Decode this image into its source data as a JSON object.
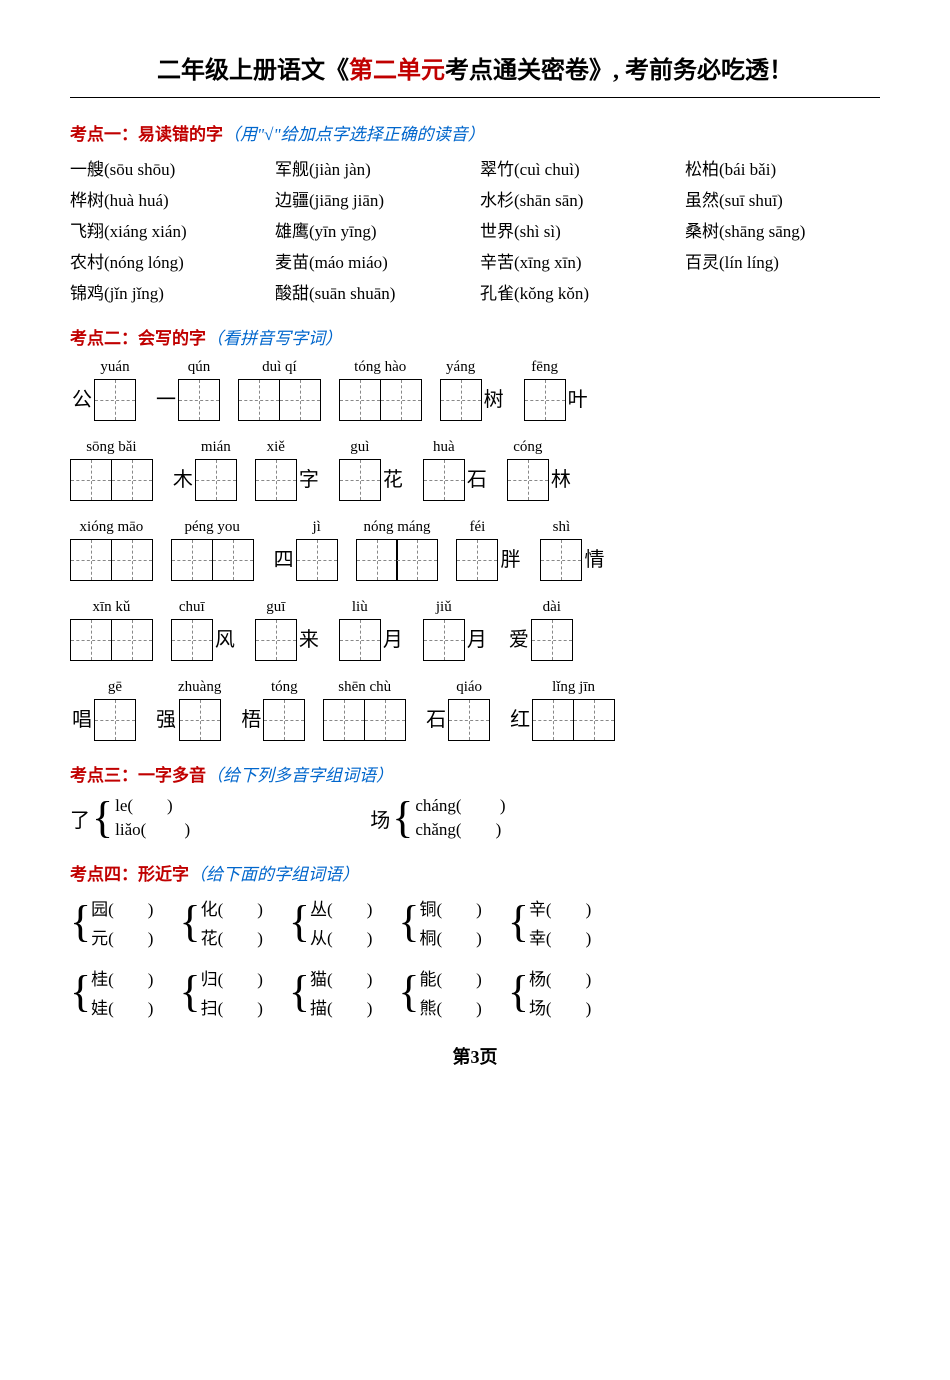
{
  "title": {
    "pre": "二年级上册语文《",
    "mid": "第二单元",
    "post": "考点通关密卷》, 考前务必吃透！"
  },
  "s1": {
    "label": "考点一：易读错的字",
    "hint": "（用\"√\"给加点字选择正确的读音）",
    "items": [
      "一艘(sōu  shōu)",
      "军舰(jiàn  jàn)",
      "翠竹(cuì  chuì)",
      "松柏(bái  bǎi)",
      "桦树(huà  huá)",
      "边疆(jiāng  jiān)",
      "水杉(shān  sān)",
      "虽然(suī  shuī)",
      "飞翔(xiáng  xián)",
      "雄鹰(yīn  yīng)",
      "世界(shì  sì)",
      "桑树(shāng  sāng)",
      "农村(nóng  lóng)",
      "麦苗(máo  miáo)",
      "辛苦(xīng  xīn)",
      "百灵(lín  líng)",
      "锦鸡(jǐn  jǐng)",
      "酸甜(suān  shuān)",
      "孔雀(kǒng  kǒn)",
      ""
    ]
  },
  "s2": {
    "label": "考点二：会写的字",
    "hint": "（看拼音写字词）",
    "rows": [
      [
        {
          "pre": "公",
          "py": [
            "yuán"
          ],
          "n": 1
        },
        {
          "pre": "一",
          "py": [
            "qún"
          ],
          "n": 1
        },
        {
          "py": [
            "duì",
            "qí"
          ],
          "n": 2
        },
        {
          "py": [
            "tóng",
            "hào"
          ],
          "n": 2
        },
        {
          "py": [
            "yáng"
          ],
          "n": 1,
          "post": "树"
        },
        {
          "py": [
            "fēng"
          ],
          "n": 1,
          "post": "叶"
        }
      ],
      [
        {
          "py": [
            "sōng",
            "bǎi"
          ],
          "n": 2
        },
        {
          "pre": "木",
          "py": [
            "mián"
          ],
          "n": 1
        },
        {
          "py": [
            "xiě"
          ],
          "n": 1,
          "post": "字"
        },
        {
          "py": [
            "guì"
          ],
          "n": 1,
          "post": "花"
        },
        {
          "py": [
            "huà"
          ],
          "n": 1,
          "post": "石"
        },
        {
          "py": [
            "cóng"
          ],
          "n": 1,
          "post": "林"
        }
      ],
      [
        {
          "py": [
            "xióng",
            "māo"
          ],
          "n": 2
        },
        {
          "py": [
            "péng",
            "you"
          ],
          "n": 2
        },
        {
          "pre": "四",
          "py": [
            "jì"
          ],
          "n": 1
        },
        {
          "py": [
            "nóng",
            "máng"
          ],
          "n": 2
        },
        {
          "py": [
            "féi"
          ],
          "n": 1,
          "post": "胖"
        },
        {
          "py": [
            "shì"
          ],
          "n": 1,
          "post": "情"
        }
      ],
      [
        {
          "py": [
            "xīn",
            "kǔ"
          ],
          "n": 2
        },
        {
          "py": [
            "chuī"
          ],
          "n": 1,
          "post": "风"
        },
        {
          "py": [
            "guī"
          ],
          "n": 1,
          "post": "来"
        },
        {
          "py": [
            "liù"
          ],
          "n": 1,
          "post": "月"
        },
        {
          "py": [
            "jiǔ"
          ],
          "n": 1,
          "post": "月"
        },
        {
          "pre": "爱",
          "py": [
            "dài"
          ],
          "n": 1
        }
      ],
      [
        {
          "pre": "唱",
          "py": [
            "gē"
          ],
          "n": 1
        },
        {
          "pre": "强",
          "py": [
            "zhuàng"
          ],
          "n": 1
        },
        {
          "pre": "梧",
          "py": [
            "tóng"
          ],
          "n": 1
        },
        {
          "py": [
            "shēn",
            "chù"
          ],
          "n": 2
        },
        {
          "pre": "石",
          "py": [
            "qiáo"
          ],
          "n": 1
        },
        {
          "pre": "红",
          "py": [
            "lǐng",
            "jīn"
          ],
          "n": 2
        }
      ]
    ]
  },
  "s3": {
    "label": "考点三：一字多音",
    "hint": "（给下列多音字组词语）",
    "groups": [
      {
        "char": "了",
        "opts": [
          "le(        )",
          "liǎo(         )"
        ]
      },
      {
        "char": "场",
        "opts": [
          "cháng(         )",
          "chǎng(        )"
        ]
      }
    ]
  },
  "s4": {
    "label": "考点四：形近字",
    "hint": "（给下面的字组词语）",
    "rows": [
      [
        {
          "opts": [
            "园(        )",
            "元(        )"
          ]
        },
        {
          "opts": [
            "化(        )",
            "花(        )"
          ]
        },
        {
          "opts": [
            "丛(        )",
            "从(        )"
          ]
        },
        {
          "opts": [
            "铜(        )",
            "桐(        )"
          ]
        },
        {
          "opts": [
            "辛(        )",
            "幸(        )"
          ]
        }
      ],
      [
        {
          "opts": [
            "桂(        )",
            "娃(        )"
          ]
        },
        {
          "opts": [
            "归(        )",
            "扫(        )"
          ]
        },
        {
          "opts": [
            "猫(        )",
            "描(        )"
          ]
        },
        {
          "opts": [
            "能(        )",
            "熊(        )"
          ]
        },
        {
          "opts": [
            "杨(        )",
            "场(        )"
          ]
        }
      ]
    ]
  },
  "pagenum": "第3页"
}
